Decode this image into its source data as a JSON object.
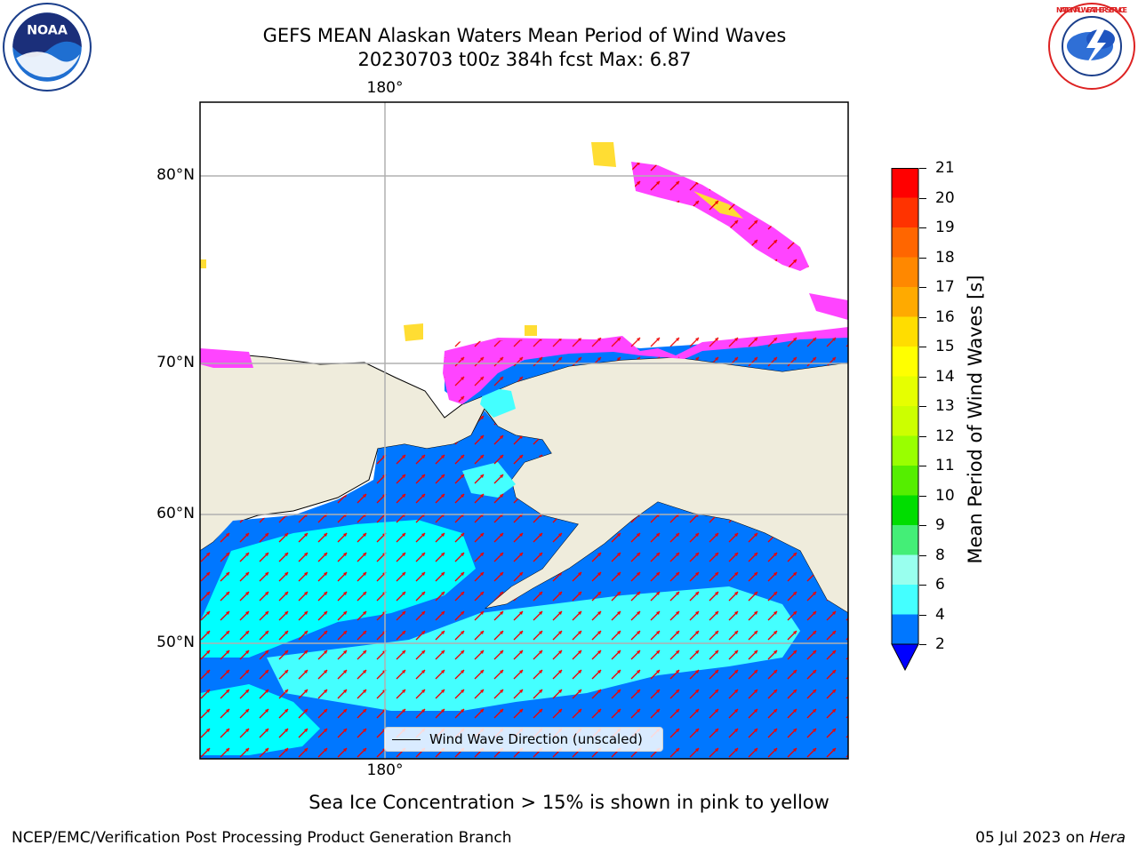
{
  "title_line1": "GEFS MEAN Alaskan Waters Mean Period of Wind Waves",
  "title_line2": "20230703 t00z 384h fcst   Max: 6.87",
  "lat_labels": [
    "80°N",
    "70°N",
    "60°N",
    "50°N"
  ],
  "lon_label_top": "180°",
  "lon_label_bottom": "180°",
  "legend_label": "Wind Wave Direction (unscaled)",
  "colorbar": {
    "label": "Mean Period of Wind Waves [s]",
    "ticks": [
      "21",
      "20",
      "19",
      "18",
      "17",
      "16",
      "15",
      "14",
      "13",
      "12",
      "11",
      "10",
      "9",
      "8",
      "6",
      "4",
      "2"
    ],
    "colors": [
      "#ff0000",
      "#ff3300",
      "#ff6600",
      "#ff8800",
      "#ffaa00",
      "#ffdd00",
      "#ffff00",
      "#e6ff00",
      "#ccff00",
      "#99ff00",
      "#55ee00",
      "#00dd00",
      "#44ee77",
      "#99ffee",
      "#44ffff",
      "#00ffff",
      "#0077ff"
    ],
    "extend_color": "#0000ff"
  },
  "colors": {
    "land": "#efecdc",
    "ocean_dark": "#0077ff",
    "ocean_light": "#00ffff",
    "ocean_mid": "#44ffff",
    "ice_pink": "#ff44ff",
    "ice_yellow": "#ffdd33",
    "arrow": "#ee0000",
    "grid": "#b0b0b0"
  },
  "logos": {
    "noaa_text": "NOAA",
    "nws_text": "NATIONAL WEATHER SERVICE"
  },
  "note": "Sea Ice Concentration > 15% is shown in pink to yellow",
  "footer_left": "NCEP/EMC/Verification Post Processing Product Generation Branch",
  "footer_right_date": "05 Jul 2023 on ",
  "footer_right_host": "Hera"
}
